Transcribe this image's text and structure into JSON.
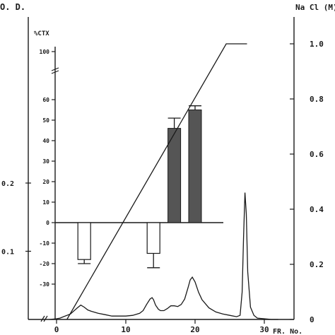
{
  "chart_data": {
    "type": "line",
    "labels": {
      "left_axis_title": "O. D.",
      "right_axis_title": "Na Cl (M)",
      "inset_axis_title": "%CTX",
      "x_axis_title": "FR. No."
    },
    "x_axis": {
      "range": [
        -1,
        33
      ],
      "ticks": [
        0,
        10,
        20,
        30
      ]
    },
    "left_axis": {
      "range": [
        0,
        0.2
      ],
      "ticks": [
        0.1,
        0.2
      ],
      "tick_labels": [
        "0.1",
        "0.2"
      ]
    },
    "right_axis": {
      "range": [
        0,
        1.0
      ],
      "ticks": [
        0,
        0.2,
        0.4,
        0.6,
        0.8,
        1.0
      ],
      "tick_labels": [
        "0",
        "0.2",
        "0.4",
        "0.6",
        "0.8",
        "1.0"
      ]
    },
    "inset_axis": {
      "range": [
        -35,
        60
      ],
      "ticks": [
        -30,
        -20,
        -10,
        0,
        10,
        20,
        30,
        40,
        50,
        60
      ],
      "break_label": "100",
      "break": true
    },
    "absorbance": {
      "axis": "left",
      "x": [
        -1,
        0,
        0.5,
        1,
        2,
        3,
        3.5,
        4,
        4.5,
        5,
        6,
        7,
        8,
        9,
        10,
        11,
        12,
        12.5,
        13,
        13.5,
        13.8,
        14,
        14.3,
        14.7,
        15,
        15.5,
        16,
        16.5,
        17,
        17.5,
        18,
        18.5,
        19,
        19.3,
        19.6,
        20,
        20.5,
        21,
        22,
        23,
        24,
        25,
        26,
        26.5,
        26.8,
        27,
        27.2,
        27.4,
        27.6,
        28,
        28.5,
        29,
        30,
        31,
        32
      ],
      "y": [
        0,
        0.001,
        0.002,
        0.004,
        0.008,
        0.017,
        0.021,
        0.018,
        0.014,
        0.012,
        0.009,
        0.007,
        0.005,
        0.005,
        0.005,
        0.006,
        0.009,
        0.013,
        0.022,
        0.03,
        0.032,
        0.029,
        0.021,
        0.015,
        0.013,
        0.013,
        0.016,
        0.02,
        0.02,
        0.019,
        0.022,
        0.03,
        0.047,
        0.058,
        0.062,
        0.055,
        0.04,
        0.029,
        0.017,
        0.011,
        0.008,
        0.006,
        0.004,
        0.006,
        0.04,
        0.12,
        0.186,
        0.155,
        0.07,
        0.018,
        0.006,
        0.002,
        0.001,
        0.0,
        0.0
      ]
    },
    "nacl_gradient": {
      "axis": "right",
      "x": [
        1.5,
        24.5,
        27.5
      ],
      "y": [
        0.0,
        1.0,
        1.0
      ]
    },
    "ctx_bars": {
      "axis": "inset",
      "x": [
        4,
        14,
        17,
        20
      ],
      "values": [
        -18,
        -15,
        46,
        55
      ],
      "errors": [
        2,
        7,
        5,
        2
      ],
      "fills": [
        "open",
        "open",
        "hatched",
        "hatched"
      ]
    },
    "colors": {
      "ink": "#1a1a1a",
      "hatched_fill": "#555555",
      "open_fill": "#ffffff"
    }
  }
}
